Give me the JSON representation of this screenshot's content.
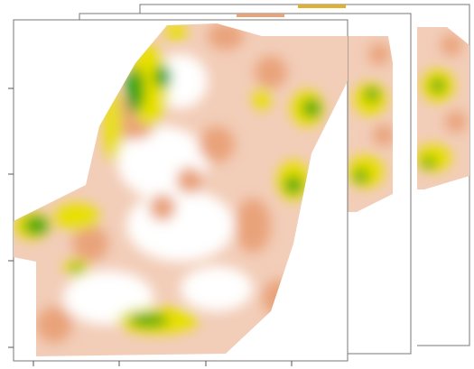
{
  "colors": [
    "#ffffff",
    "#f2cdb8",
    "#e9a37a",
    "#e8e000",
    "#10a010"
  ]
}
